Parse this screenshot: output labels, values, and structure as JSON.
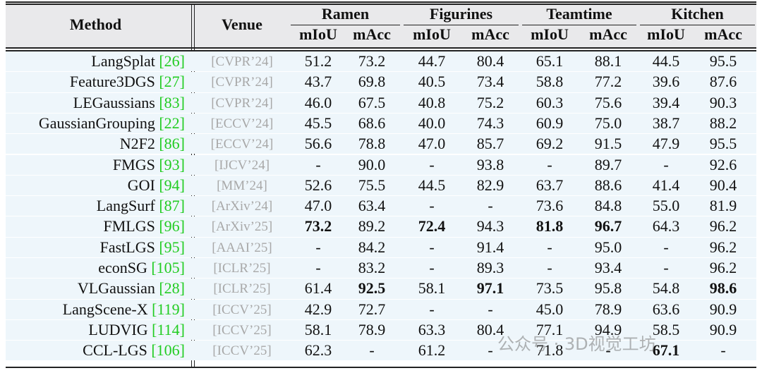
{
  "header": {
    "method": "Method",
    "venue": "Venue",
    "scenes": [
      "Ramen",
      "Figurines",
      "Teamtime",
      "Kitchen"
    ],
    "metrics": [
      "mIoU",
      "mAcc"
    ]
  },
  "rows": [
    {
      "name": "LangSplat",
      "ref": "[26]",
      "venue": "[CVPR’24]",
      "values": [
        "51.2",
        "73.2",
        "44.7",
        "80.4",
        "65.1",
        "88.1",
        "44.5",
        "95.5"
      ],
      "bold": []
    },
    {
      "name": "Feature3DGS",
      "ref": "[27]",
      "venue": "[CVPR’24]",
      "values": [
        "43.7",
        "69.8",
        "40.5",
        "73.4",
        "58.8",
        "77.2",
        "39.6",
        "87.6"
      ],
      "bold": []
    },
    {
      "name": "LEGaussians",
      "ref": "[83]",
      "venue": "[CVPR’24]",
      "values": [
        "46.0",
        "67.5",
        "40.8",
        "75.2",
        "60.3",
        "75.6",
        "39.4",
        "90.3"
      ],
      "bold": []
    },
    {
      "name": "GaussianGrouping",
      "ref": "[22]",
      "venue": "[ECCV’24]",
      "values": [
        "45.5",
        "68.6",
        "40.0",
        "74.3",
        "60.9",
        "75.0",
        "38.7",
        "88.2"
      ],
      "bold": []
    },
    {
      "name": "N2F2",
      "ref": "[86]",
      "venue": "[ECCV’24]",
      "values": [
        "56.6",
        "78.8",
        "47.0",
        "85.7",
        "69.2",
        "91.5",
        "47.9",
        "95.5"
      ],
      "bold": []
    },
    {
      "name": "FMGS",
      "ref": "[93]",
      "venue": "[IJCV’24]",
      "values": [
        "-",
        "90.0",
        "-",
        "93.8",
        "-",
        "89.7",
        "-",
        "92.6"
      ],
      "bold": []
    },
    {
      "name": "GOI",
      "ref": "[94]",
      "venue": "[MM’24]",
      "values": [
        "52.6",
        "75.5",
        "44.5",
        "82.9",
        "63.7",
        "88.6",
        "41.4",
        "90.4"
      ],
      "bold": []
    },
    {
      "name": "LangSurf",
      "ref": "[87]",
      "venue": "[ArXiv’24]",
      "values": [
        "47.0",
        "63.4",
        "-",
        "-",
        "73.6",
        "84.8",
        "55.0",
        "81.9"
      ],
      "bold": []
    },
    {
      "name": "FMLGS",
      "ref": "[96]",
      "venue": "[ArXiv’25]",
      "values": [
        "73.2",
        "89.2",
        "72.4",
        "94.3",
        "81.8",
        "96.7",
        "64.3",
        "96.2"
      ],
      "bold": [
        0,
        2,
        4,
        5
      ]
    },
    {
      "name": "FastLGS",
      "ref": "[95]",
      "venue": "[AAAI’25]",
      "values": [
        "-",
        "84.2",
        "-",
        "91.4",
        "-",
        "95.0",
        "-",
        "96.2"
      ],
      "bold": []
    },
    {
      "name": "econSG",
      "ref": "[105]",
      "venue": "[ICLR’25]",
      "values": [
        "-",
        "83.2",
        "-",
        "89.3",
        "-",
        "93.4",
        "-",
        "96.2"
      ],
      "bold": []
    },
    {
      "name": "VLGaussian",
      "ref": "[28]",
      "venue": "[ICLR’25]",
      "values": [
        "61.4",
        "92.5",
        "58.1",
        "97.1",
        "73.5",
        "95.8",
        "54.8",
        "98.6"
      ],
      "bold": [
        1,
        3,
        7
      ]
    },
    {
      "name": "LangScene-X",
      "ref": "[119]",
      "venue": "[ICCV’25]",
      "values": [
        "42.9",
        "72.7",
        "-",
        "-",
        "45.0",
        "78.9",
        "63.6",
        "90.9"
      ],
      "bold": []
    },
    {
      "name": "LUDVIG",
      "ref": "[114]",
      "venue": "[ICCV’25]",
      "values": [
        "58.1",
        "78.9",
        "63.3",
        "80.4",
        "77.1",
        "94.9",
        "58.5",
        "90.9"
      ],
      "bold": []
    },
    {
      "name": "CCL-LGS",
      "ref": "[106]",
      "venue": "[ICCV’25]",
      "values": [
        "62.3",
        "-",
        "61.2",
        "-",
        "71.8",
        "-",
        "67.1",
        "-"
      ],
      "bold": [
        6
      ]
    }
  ],
  "watermark": "公众号 · 3D视觉工坊"
}
